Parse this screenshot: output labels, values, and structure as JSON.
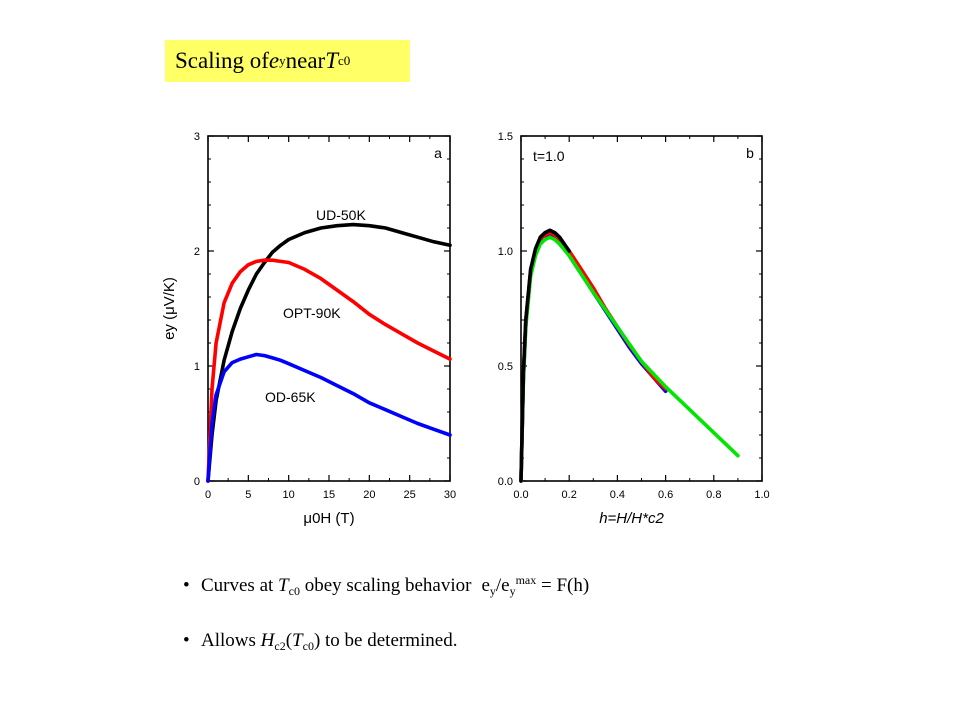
{
  "slide_title": {
    "prefix": "Scaling of ",
    "var": "e",
    "var_sub": "y",
    "middle": " near ",
    "temp": "T",
    "temp_sub": "c0"
  },
  "bullets": [
    {
      "text_a": "Curves at ",
      "t": "T",
      "t_sub": "c0",
      "text_b": " obey scaling behavior",
      "formula": {
        "e1": "e",
        "e1_sub": "y",
        "slash": "/e",
        "e2_sub": "y",
        "e2_sup": "max",
        "eq": " = F(h)"
      }
    },
    {
      "text_a": "Allows ",
      "h": "H",
      "h_sub": "c2",
      "paren_open": "(",
      "t": "T",
      "t_sub": "c0",
      "text_b": ") to be determined."
    }
  ],
  "chart_data": [
    {
      "type": "line",
      "panel_label": "a",
      "xlabel": "μ0H (T)",
      "ylabel": "ey (μV/K)",
      "xlim": [
        0,
        30
      ],
      "ylim": [
        0,
        3
      ],
      "xticks": [
        "0",
        "5",
        "10",
        "15",
        "20",
        "25",
        "30"
      ],
      "yticks": [
        "0",
        "1",
        "2",
        "3"
      ],
      "series": [
        {
          "name": "UD-50K",
          "color": "#000000",
          "x": [
            0,
            0.5,
            1,
            2,
            3,
            4,
            5,
            6,
            7,
            8,
            9,
            10,
            12,
            14,
            16,
            18,
            20,
            22,
            24,
            26,
            28,
            30
          ],
          "y": [
            0,
            0.4,
            0.7,
            1.05,
            1.3,
            1.5,
            1.66,
            1.8,
            1.9,
            1.99,
            2.05,
            2.1,
            2.16,
            2.2,
            2.22,
            2.23,
            2.22,
            2.2,
            2.16,
            2.12,
            2.08,
            2.05
          ]
        },
        {
          "name": "OPT-90K",
          "color": "#ff0000",
          "x": [
            0,
            0.5,
            1,
            2,
            3,
            4,
            5,
            6,
            7,
            8,
            9,
            10,
            12,
            14,
            16,
            18,
            20,
            22,
            24,
            26,
            28,
            30
          ],
          "y": [
            0,
            0.8,
            1.2,
            1.55,
            1.72,
            1.82,
            1.88,
            1.91,
            1.92,
            1.92,
            1.91,
            1.9,
            1.84,
            1.76,
            1.66,
            1.56,
            1.45,
            1.36,
            1.28,
            1.2,
            1.13,
            1.06
          ]
        },
        {
          "name": "OD-65K",
          "color": "#0000ff",
          "x": [
            0,
            0.5,
            1,
            2,
            3,
            4,
            5,
            6,
            7,
            8,
            9,
            10,
            12,
            14,
            16,
            18,
            20,
            22,
            24,
            26,
            28,
            30
          ],
          "y": [
            0,
            0.5,
            0.75,
            0.95,
            1.03,
            1.06,
            1.08,
            1.1,
            1.09,
            1.07,
            1.05,
            1.02,
            0.96,
            0.9,
            0.83,
            0.76,
            0.68,
            0.62,
            0.56,
            0.5,
            0.45,
            0.4
          ]
        }
      ],
      "annotations": [
        "UD-50K",
        "OPT-90K",
        "OD-65K"
      ]
    },
    {
      "type": "line",
      "panel_label": "b",
      "panel_note": "t=1.0",
      "xlabel": "h=H/H*c2",
      "ylabel": "",
      "xlim": [
        0,
        1.0
      ],
      "ylim": [
        0,
        1.5
      ],
      "xticks": [
        "0.0",
        "0.2",
        "0.4",
        "0.6",
        "0.8",
        "1.0"
      ],
      "yticks": [
        "0.0",
        "0.5",
        "1.0",
        "1.5"
      ],
      "series": [
        {
          "color": "#0000ff",
          "x": [
            0,
            0.01,
            0.02,
            0.04,
            0.06,
            0.08,
            0.1,
            0.12,
            0.14,
            0.16,
            0.2,
            0.25,
            0.3,
            0.35,
            0.4,
            0.45,
            0.5,
            0.55,
            0.6
          ],
          "y": [
            0,
            0.45,
            0.68,
            0.9,
            0.99,
            1.04,
            1.06,
            1.07,
            1.06,
            1.04,
            0.98,
            0.9,
            0.82,
            0.74,
            0.66,
            0.58,
            0.51,
            0.45,
            0.39
          ]
        },
        {
          "color": "#ff0000",
          "x": [
            0,
            0.01,
            0.02,
            0.04,
            0.06,
            0.08,
            0.1,
            0.12,
            0.14,
            0.16,
            0.2,
            0.25,
            0.3,
            0.35,
            0.4,
            0.45,
            0.5,
            0.55,
            0.6
          ],
          "y": [
            0,
            0.46,
            0.7,
            0.91,
            1.0,
            1.05,
            1.07,
            1.08,
            1.07,
            1.05,
            1.0,
            0.92,
            0.84,
            0.75,
            0.67,
            0.59,
            0.52,
            0.45,
            0.4
          ]
        },
        {
          "color": "#00e600",
          "x": [
            0,
            0.01,
            0.02,
            0.04,
            0.06,
            0.08,
            0.1,
            0.12,
            0.14,
            0.16,
            0.2,
            0.3,
            0.4,
            0.5,
            0.6,
            0.7,
            0.8,
            0.9
          ],
          "y": [
            0,
            0.44,
            0.67,
            0.89,
            0.98,
            1.03,
            1.05,
            1.06,
            1.05,
            1.03,
            0.98,
            0.82,
            0.67,
            0.52,
            0.41,
            0.31,
            0.21,
            0.11
          ]
        },
        {
          "color": "#000000",
          "x": [
            0,
            0.01,
            0.02,
            0.04,
            0.06,
            0.08,
            0.1,
            0.12,
            0.14,
            0.16,
            0.18,
            0.2
          ],
          "y": [
            0,
            0.47,
            0.7,
            0.92,
            1.01,
            1.06,
            1.08,
            1.09,
            1.08,
            1.06,
            1.03,
            1.0
          ]
        }
      ]
    }
  ]
}
